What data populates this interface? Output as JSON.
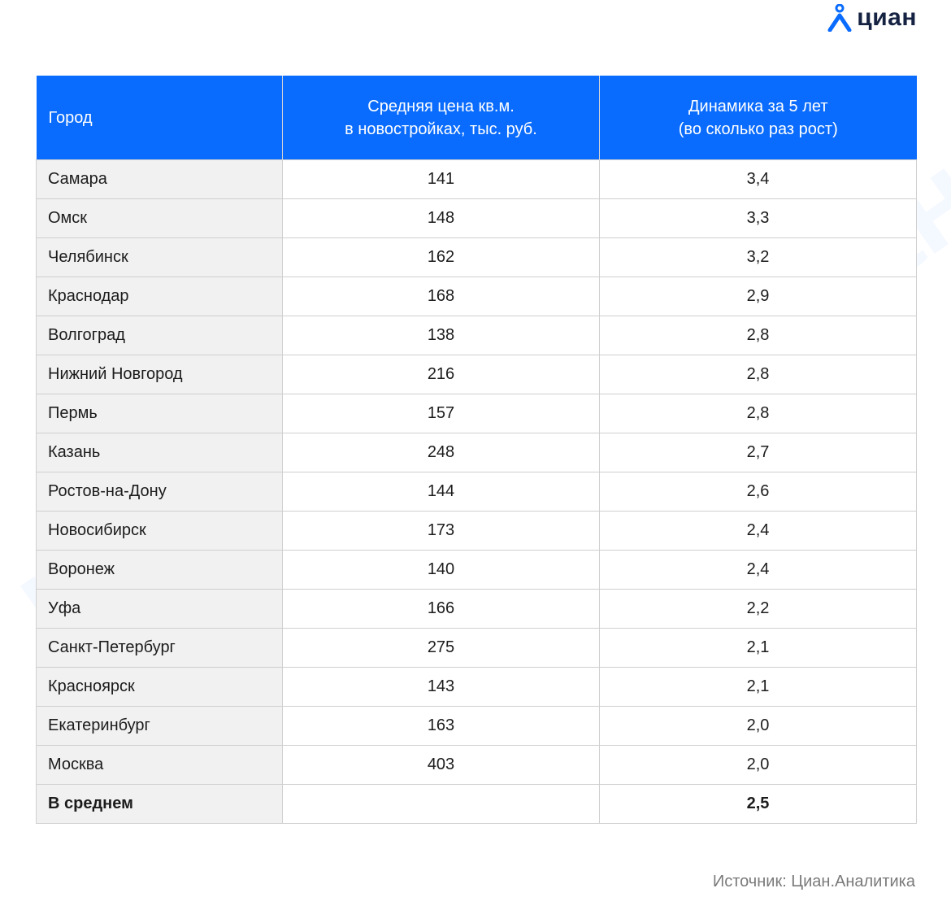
{
  "brand": {
    "logo_text": "циан",
    "logo_icon": "cian-house-person-icon",
    "accent_color": "#0a6cfe",
    "watermark_text": "циан"
  },
  "table": {
    "headers": [
      {
        "line1": "Город",
        "line2": ""
      },
      {
        "line1": "Средняя цена кв.м.",
        "line2": "в новостройках, тыс. руб."
      },
      {
        "line1": "Динамика за 5 лет",
        "line2": "(во сколько раз рост)"
      }
    ],
    "rows": [
      {
        "city": "Самара",
        "price": "141",
        "growth": "3,4"
      },
      {
        "city": "Омск",
        "price": "148",
        "growth": "3,3"
      },
      {
        "city": "Челябинск",
        "price": "162",
        "growth": "3,2"
      },
      {
        "city": "Краснодар",
        "price": "168",
        "growth": "2,9"
      },
      {
        "city": "Волгоград",
        "price": "138",
        "growth": "2,8"
      },
      {
        "city": "Нижний Новгород",
        "price": "216",
        "growth": "2,8"
      },
      {
        "city": "Пермь",
        "price": "157",
        "growth": "2,8"
      },
      {
        "city": "Казань",
        "price": "248",
        "growth": "2,7"
      },
      {
        "city": "Ростов-на-Дону",
        "price": "144",
        "growth": "2,6"
      },
      {
        "city": "Новосибирск",
        "price": "173",
        "growth": "2,4"
      },
      {
        "city": "Воронеж",
        "price": "140",
        "growth": "2,4"
      },
      {
        "city": "Уфа",
        "price": "166",
        "growth": "2,2"
      },
      {
        "city": "Санкт-Петербург",
        "price": "275",
        "growth": "2,1"
      },
      {
        "city": "Красноярск",
        "price": "143",
        "growth": "2,1"
      },
      {
        "city": "Екатеринбург",
        "price": "163",
        "growth": "2,0"
      },
      {
        "city": "Москва",
        "price": "403",
        "growth": "2,0"
      }
    ],
    "average": {
      "label": "В среднем",
      "price": "",
      "growth": "2,5"
    }
  },
  "source": "Источник: Циан.Аналитика"
}
